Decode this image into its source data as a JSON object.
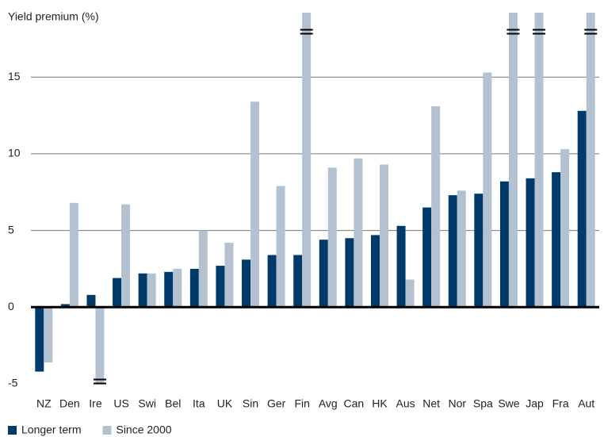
{
  "chart_data": {
    "type": "bar",
    "title": "Yield premium (%)",
    "categories": [
      "NZ",
      "Den",
      "Ire",
      "US",
      "Swi",
      "Bel",
      "Ita",
      "UK",
      "Sin",
      "Ger",
      "Fin",
      "Avg",
      "Can",
      "HK",
      "Aus",
      "Net",
      "Nor",
      "Spa",
      "Swe",
      "Jap",
      "Fra",
      "Aut"
    ],
    "series": [
      {
        "name": "Longer term",
        "color": "#003a6b",
        "values": [
          -4.2,
          0.2,
          0.8,
          1.9,
          2.2,
          2.3,
          2.5,
          2.7,
          3.1,
          3.4,
          3.4,
          4.4,
          4.5,
          4.7,
          5.3,
          6.5,
          7.3,
          7.4,
          8.2,
          8.4,
          8.8,
          12.8
        ]
      },
      {
        "name": "Since 2000",
        "color": "#b3c2d1",
        "values": [
          -3.6,
          6.8,
          -5,
          6.7,
          2.2,
          2.5,
          5.0,
          4.2,
          13.4,
          7.9,
          19.2,
          9.1,
          9.7,
          9.3,
          1.8,
          13.1,
          7.6,
          15.3,
          19.2,
          19.2,
          10.3,
          19.2
        ]
      }
    ],
    "ylim": [
      -5,
      19.2
    ],
    "yticks": [
      -5,
      0,
      5,
      10,
      15
    ],
    "grid": true,
    "legend": "bottom"
  }
}
